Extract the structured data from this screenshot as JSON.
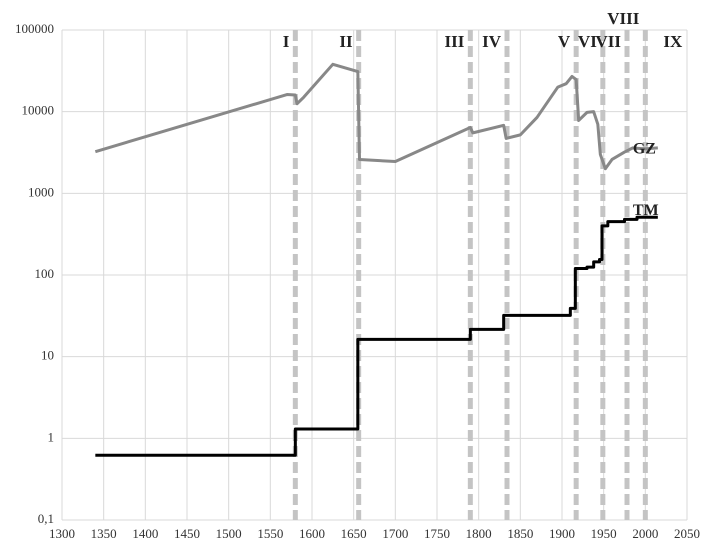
{
  "chart_data": {
    "type": "line",
    "log_scale": "y",
    "grid": true,
    "xlim": [
      1300,
      2050
    ],
    "xticks": [
      1300,
      1350,
      1400,
      1450,
      1500,
      1550,
      1600,
      1650,
      1700,
      1750,
      1800,
      1850,
      1900,
      1950,
      2000,
      2050
    ],
    "ylim": [
      0.1,
      100000
    ],
    "yticks": [
      {
        "value": 0.1,
        "label": "0,1"
      },
      1,
      10,
      100,
      1000,
      10000,
      100000
    ],
    "series": [
      {
        "name": "GZ",
        "color": "#888888",
        "x": [
          1340,
          1570,
          1580,
          1582,
          1590,
          1625,
          1655,
          1657,
          1700,
          1790,
          1793,
          1830,
          1833,
          1850,
          1870,
          1895,
          1905,
          1912,
          1917,
          1920,
          1930,
          1938,
          1943,
          1946,
          1952,
          1960,
          1975,
          1985,
          2000,
          2015
        ],
        "values": [
          3240,
          16200,
          16000,
          12500,
          15000,
          38000,
          31000,
          2600,
          2450,
          6400,
          5500,
          6800,
          4700,
          5200,
          8500,
          20000,
          22000,
          27000,
          24700,
          7800,
          9800,
          10000,
          7000,
          3000,
          2000,
          2600,
          3200,
          3600,
          3500,
          3600
        ]
      },
      {
        "name": "TM",
        "color": "#000000",
        "x": [
          1340,
          1580,
          1580,
          1655,
          1655,
          1790,
          1790,
          1830,
          1830,
          1910,
          1910,
          1916,
          1916,
          1930,
          1930,
          1938,
          1938,
          1945,
          1945,
          1948,
          1948,
          1955,
          1955,
          1975,
          1975,
          1990,
          1990,
          2015
        ],
        "values": [
          0.62,
          0.62,
          1.3,
          1.3,
          16.3,
          16.3,
          21.6,
          21.6,
          32,
          32,
          39,
          39,
          120,
          120,
          125,
          125,
          145,
          145,
          155,
          155,
          400,
          400,
          450,
          450,
          480,
          480,
          510,
          510
        ]
      }
    ],
    "period_lines": [
      1580,
      1656,
      1790,
      1834,
      1917,
      1949,
      1978,
      2000
    ],
    "period_labels": [
      "I",
      "II",
      "III",
      "IV",
      "V",
      "VI",
      "VII",
      "VIII",
      "IX"
    ]
  }
}
